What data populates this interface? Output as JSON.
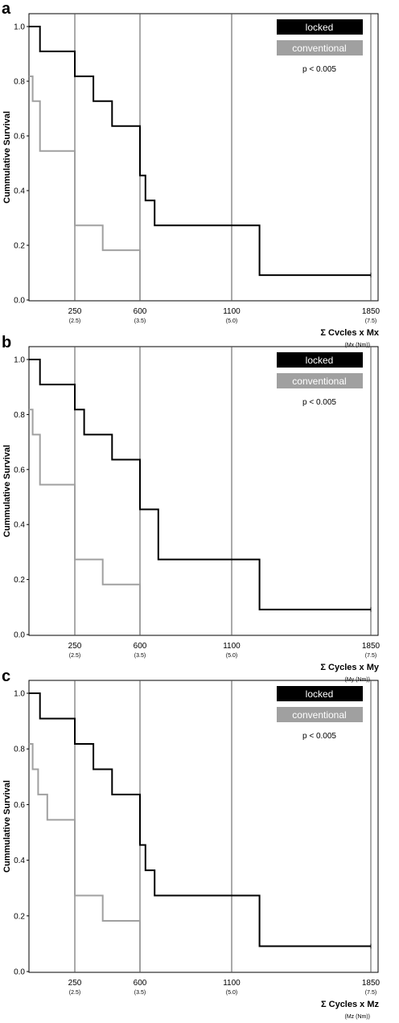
{
  "chart_data": [
    {
      "type": "line",
      "panel": "a",
      "ylabel": "Cummulative Survival",
      "xlabel": "Σ Cvcles x Mx",
      "xunit": "(Mx (Nm))",
      "p_text": "p < 0.005",
      "ylim": [
        0,
        1.0
      ],
      "yticks": [
        "0.0",
        "0.2",
        "0.4",
        "0.6",
        "0.8",
        "1.0"
      ],
      "xticks": [
        {
          "label": "250",
          "sub": "(2.5)",
          "x": 250
        },
        {
          "label": "600",
          "sub": "(3.5)",
          "x": 600
        },
        {
          "label": "1100",
          "sub": "(5.0)",
          "x": 1100
        },
        {
          "label": "1850",
          "sub": "(7.5)",
          "x": 1850
        }
      ],
      "series": [
        {
          "name": "locked",
          "color": "#000000",
          "x": [
            0,
            60,
            60,
            250,
            250,
            350,
            350,
            450,
            450,
            600,
            600,
            630,
            630,
            680,
            680,
            1250,
            1250,
            1850
          ],
          "y": [
            1.0,
            1.0,
            0.909,
            0.909,
            0.818,
            0.818,
            0.727,
            0.727,
            0.636,
            0.636,
            0.455,
            0.455,
            0.364,
            0.364,
            0.273,
            0.273,
            0.091,
            0.091
          ]
        },
        {
          "name": "conventional",
          "color": "#a0a0a0",
          "x": [
            0,
            20,
            20,
            60,
            60,
            250,
            250,
            400,
            400,
            600,
            600
          ],
          "y": [
            0.818,
            0.818,
            0.727,
            0.727,
            0.545,
            0.545,
            0.273,
            0.273,
            0.182,
            0.182,
            0.0
          ]
        }
      ]
    },
    {
      "type": "line",
      "panel": "b",
      "ylabel": "Cummulative Survival",
      "xlabel": "Σ Cycles x My",
      "xunit": "(My (Nm))",
      "p_text": "p < 0.005",
      "ylim": [
        0,
        1.0
      ],
      "yticks": [
        "0.0",
        "0.2",
        "0.4",
        "0.6",
        "0.8",
        "1.0"
      ],
      "xticks": [
        {
          "label": "250",
          "sub": "(2.5)",
          "x": 250
        },
        {
          "label": "600",
          "sub": "(3.5)",
          "x": 600
        },
        {
          "label": "1100",
          "sub": "(5.0)",
          "x": 1100
        },
        {
          "label": "1850",
          "sub": "(7.5)",
          "x": 1850
        }
      ],
      "series": [
        {
          "name": "locked",
          "color": "#000000",
          "x": [
            0,
            60,
            60,
            250,
            250,
            300,
            300,
            450,
            450,
            600,
            600,
            700,
            700,
            1250,
            1250,
            1850
          ],
          "y": [
            1.0,
            1.0,
            0.909,
            0.909,
            0.818,
            0.818,
            0.727,
            0.727,
            0.636,
            0.636,
            0.455,
            0.455,
            0.273,
            0.273,
            0.091,
            0.091
          ]
        },
        {
          "name": "conventional",
          "color": "#a0a0a0",
          "x": [
            0,
            20,
            20,
            60,
            60,
            250,
            250,
            400,
            400,
            600,
            600
          ],
          "y": [
            0.818,
            0.818,
            0.727,
            0.727,
            0.545,
            0.545,
            0.273,
            0.273,
            0.182,
            0.182,
            0.0
          ]
        }
      ]
    },
    {
      "type": "line",
      "panel": "c",
      "ylabel": "Cummulative Survival",
      "xlabel": "Σ Cycles x Mz",
      "xunit": "(Mz (Nm))",
      "p_text": "p < 0.005",
      "ylim": [
        0,
        1.0
      ],
      "yticks": [
        "0.0",
        "0.2",
        "0.4",
        "0.6",
        "0.8",
        "1.0"
      ],
      "xticks": [
        {
          "label": "250",
          "sub": "(2.5)",
          "x": 250
        },
        {
          "label": "600",
          "sub": "(3.5)",
          "x": 600
        },
        {
          "label": "1100",
          "sub": "(5.0)",
          "x": 1100
        },
        {
          "label": "1850",
          "sub": "(7.5)",
          "x": 1850
        }
      ],
      "series": [
        {
          "name": "locked",
          "color": "#000000",
          "x": [
            0,
            60,
            60,
            250,
            250,
            350,
            350,
            450,
            450,
            600,
            600,
            630,
            630,
            680,
            680,
            1250,
            1250,
            1850
          ],
          "y": [
            1.0,
            1.0,
            0.909,
            0.909,
            0.818,
            0.818,
            0.727,
            0.727,
            0.636,
            0.636,
            0.455,
            0.455,
            0.364,
            0.364,
            0.273,
            0.273,
            0.091,
            0.091
          ]
        },
        {
          "name": "conventional",
          "color": "#a0a0a0",
          "x": [
            0,
            20,
            20,
            50,
            50,
            100,
            100,
            250,
            250,
            400,
            400,
            600,
            600
          ],
          "y": [
            0.818,
            0.818,
            0.727,
            0.727,
            0.636,
            0.636,
            0.545,
            0.545,
            0.273,
            0.273,
            0.182,
            0.182,
            0.0
          ]
        }
      ]
    }
  ],
  "legend": {
    "locked": {
      "label": "locked",
      "color": "#000000"
    },
    "conventional": {
      "label": "conventional",
      "color": "#a0a0a0"
    }
  }
}
